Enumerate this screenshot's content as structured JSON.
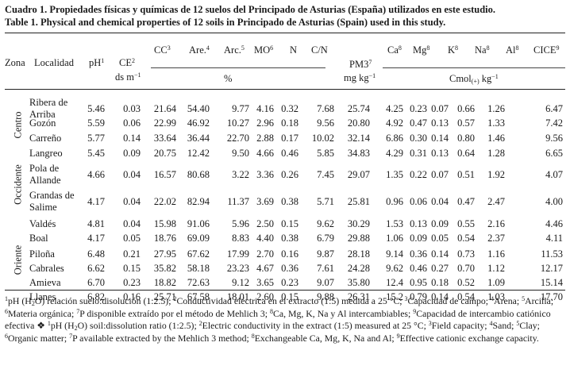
{
  "caption": {
    "es": "Cuadro 1. Propiedades físicas y químicas de 12 suelos del Principado de Asturias (España) utilizados en este estudio.",
    "en": "Table 1. Physical and chemical properties of 12 soils in Principado de Asturias (Spain) used in this study."
  },
  "headers": {
    "zona": "Zona",
    "localidad": "Localidad",
    "ph": "pH",
    "ph_sup": "1",
    "ce": "CE",
    "ce_sup": "2",
    "ce_unit": "ds m",
    "ce_unit_sup": "−1",
    "cc": "CC",
    "cc_sup": "3",
    "are": "Are.",
    "are_sup": "4",
    "arc": "Arc.",
    "arc_sup": "5",
    "mo": "MO",
    "mo_sup": "6",
    "n": "N",
    "cn": "C/N",
    "percent": "%",
    "pm": "PM3",
    "pm_sup": "7",
    "pm_unit": "mg kg",
    "pm_unit_sup": "−1",
    "ca": "Ca",
    "ca_sup": "8",
    "mg": "Mg",
    "mg_sup": "8",
    "k": "K",
    "k_sup": "8",
    "na": "Na",
    "na_sup": "8",
    "al": "Al",
    "al_sup": "8",
    "cice": "CICE",
    "cice_sup": "9",
    "cmol": "Cmol",
    "cmol_sub": "(+)",
    "cmol_unit": " kg",
    "cmol_unit_sup": "−1"
  },
  "zones": [
    "Centro",
    "Occidente",
    "Oriente"
  ],
  "rows": [
    {
      "loc1": "Ribera de",
      "loc2": "Arriba",
      "ph": "5.46",
      "ce": "0.03",
      "cc": "21.64",
      "are": "54.40",
      "arc": "9.77",
      "mo": "4.16",
      "n": "0.32",
      "cn": "7.68",
      "pm": "25.74",
      "ca": "4.25",
      "mg": "0.23",
      "k": "0.07",
      "na": "0.66",
      "al": "1.26",
      "cice": "6.47"
    },
    {
      "loc1": "Gozón",
      "loc2": "",
      "ph": "5.59",
      "ce": "0.06",
      "cc": "22.99",
      "are": "46.92",
      "arc": "10.27",
      "mo": "2.96",
      "n": "0.18",
      "cn": "9.56",
      "pm": "20.80",
      "ca": "4.92",
      "mg": "0.47",
      "k": "0.13",
      "na": "0.57",
      "al": "1.33",
      "cice": "7.42"
    },
    {
      "loc1": "Carreño",
      "loc2": "",
      "ph": "5.77",
      "ce": "0.14",
      "cc": "33.64",
      "are": "36.44",
      "arc": "22.70",
      "mo": "2.88",
      "n": "0.17",
      "cn": "10.02",
      "pm": "32.14",
      "ca": "6.86",
      "mg": "0.30",
      "k": "0.14",
      "na": "0.80",
      "al": "1.46",
      "cice": "9.56"
    },
    {
      "loc1": "Langreo",
      "loc2": "",
      "ph": "5.45",
      "ce": "0.09",
      "cc": "20.75",
      "are": "12.42",
      "arc": "9.50",
      "mo": "4.66",
      "n": "0.46",
      "cn": "5.85",
      "pm": "34.83",
      "ca": "4.29",
      "mg": "0.31",
      "k": "0.13",
      "na": "0.64",
      "al": "1.28",
      "cice": "6.65"
    },
    {
      "loc1": "Pola de",
      "loc2": "Allande",
      "ph": "4.66",
      "ce": "0.04",
      "cc": "16.57",
      "are": "80.68",
      "arc": "3.22",
      "mo": "3.36",
      "n": "0.26",
      "cn": "7.45",
      "pm": "29.07",
      "ca": "1.35",
      "mg": "0.22",
      "k": "0.07",
      "na": "0.51",
      "al": "1.92",
      "cice": "4.07"
    },
    {
      "loc1": "Grandas de",
      "loc2": "Salime",
      "ph": "4.17",
      "ce": "0.04",
      "cc": "22.02",
      "are": "82.94",
      "arc": "11.37",
      "mo": "3.69",
      "n": "0.38",
      "cn": "5.71",
      "pm": "25.81",
      "ca": "0.96",
      "mg": "0.06",
      "k": "0.04",
      "na": "0.47",
      "al": "2.47",
      "cice": "4.00"
    },
    {
      "loc1": "Valdés",
      "loc2": "",
      "ph": "4.81",
      "ce": "0.04",
      "cc": "15.98",
      "are": "91.06",
      "arc": "5.96",
      "mo": "2.50",
      "n": "0.15",
      "cn": "9.62",
      "pm": "30.29",
      "ca": "1.53",
      "mg": "0.13",
      "k": "0.09",
      "na": "0.55",
      "al": "2.16",
      "cice": "4.46"
    },
    {
      "loc1": "Boal",
      "loc2": "",
      "ph": "4.17",
      "ce": "0.05",
      "cc": "18.76",
      "are": "69.09",
      "arc": "8.83",
      "mo": "4.40",
      "n": "0.38",
      "cn": "6.79",
      "pm": "29.88",
      "ca": "1.06",
      "mg": "0.09",
      "k": "0.05",
      "na": "0.54",
      "al": "2.37",
      "cice": "4.11"
    },
    {
      "loc1": "Piloña",
      "loc2": "",
      "ph": "6.48",
      "ce": "0.21",
      "cc": "27.95",
      "are": "67.62",
      "arc": "17.99",
      "mo": "2.70",
      "n": "0.16",
      "cn": "9.87",
      "pm": "28.18",
      "ca": "9.14",
      "mg": "0.36",
      "k": "0.14",
      "na": "0.73",
      "al": "1.16",
      "cice": "11.53"
    },
    {
      "loc1": "Cabrales",
      "loc2": "",
      "ph": "6.62",
      "ce": "0.15",
      "cc": "35.82",
      "are": "58.18",
      "arc": "23.23",
      "mo": "4.67",
      "n": "0.36",
      "cn": "7.61",
      "pm": "24.28",
      "ca": "9.62",
      "mg": "0.46",
      "k": "0.27",
      "na": "0.70",
      "al": "1.12",
      "cice": "12.17"
    },
    {
      "loc1": "Amieva",
      "loc2": "",
      "ph": "6.70",
      "ce": "0.23",
      "cc": "18.82",
      "are": "72.63",
      "arc": "9.12",
      "mo": "3.65",
      "n": "0.23",
      "cn": "9.07",
      "pm": "35.80",
      "ca": "12.4",
      "mg": "0.95",
      "k": "0.18",
      "na": "0.52",
      "al": "1.09",
      "cice": "15.14"
    },
    {
      "loc1": "Llanes",
      "loc2": "",
      "ph": "6.82",
      "ce": "0.16",
      "cc": "25.71",
      "are": "67.58",
      "arc": "18.01",
      "mo": "2.60",
      "n": "0.15",
      "cn": "9.88",
      "pm": "26.31",
      "ca": "15.2",
      "mg": "0.79",
      "k": "0.14",
      "na": "0.54",
      "al": "1.03",
      "cice": "17.70"
    }
  ],
  "footnote": {
    "f1a": "pH (H",
    "f1b": "O) relación suelo:disolución (1:2.5); ",
    "f2": "Conductividad eléctrica en el extracto (1:5) medida a 25 °C; ",
    "f3": "Capacidad de campo; ",
    "f4": "Arena; ",
    "f5": "Arcilla; ",
    "f6": "Materia orgánica; ",
    "f7": "P disponible extraído por el método de Mehlich 3; ",
    "f8": "Ca, Mg, K, Na y Al intercambiables; ",
    "f9": "Capacidad de intercambio catiónico efectiva ",
    "sep": "❖ ",
    "e1a": "pH (H",
    "e1b": "O) soil:dissolution ratio (1:2.5); ",
    "e2": "Electric conductivity in the extract (1:5) measured at 25 °C; ",
    "e3": "Field capacity; ",
    "e4": "Sand; ",
    "e5": "Clay; ",
    "e6": "Organic matter; ",
    "e7": "P available extracted by the Mehlich 3 method; ",
    "e8": "Exchangeable Ca, Mg, K, Na and Al; ",
    "e9": "Effective cationic exchange capacity.",
    "two": "2"
  }
}
